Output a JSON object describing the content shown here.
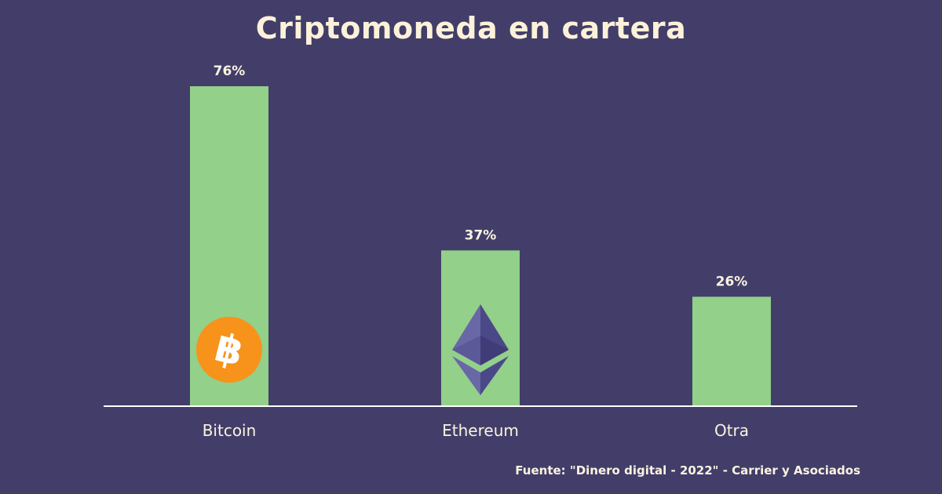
{
  "chart_data": {
    "type": "bar",
    "title": "Criptomoneda en cartera",
    "categories": [
      "Bitcoin",
      "Ethereum",
      "Otra"
    ],
    "values": [
      76,
      37,
      26
    ],
    "value_labels": [
      "76%",
      "37%",
      "26%"
    ],
    "unit": "%",
    "ylim": [
      0,
      76
    ],
    "grid": false,
    "legend": "none",
    "bar_icons": [
      "bitcoin-logo-icon",
      "ethereum-logo-icon",
      null
    ]
  },
  "source": "Fuente: \"Dinero digital - 2022\" - Carrier y Asociados",
  "colors": {
    "background": "#423e69",
    "bar": "#93d08a",
    "text": "#fbf3e0",
    "bitcoin": "#f7931a",
    "ethereum": "#5a5796"
  }
}
